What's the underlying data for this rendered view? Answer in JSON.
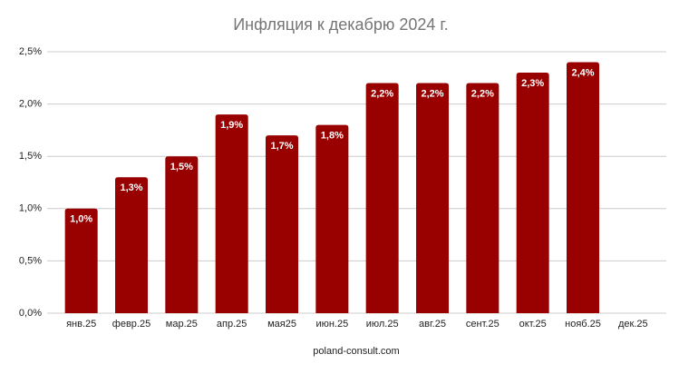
{
  "chart_data": {
    "type": "bar",
    "title": "Инфляция к декабрю 2024 г.",
    "x_label": "poland-consult.com",
    "categories": [
      "янв.25",
      "февр.25",
      "мар.25",
      "апр.25",
      "мая25",
      "июн.25",
      "июл.25",
      "авг.25",
      "сент.25",
      "окт.25",
      "нояб.25",
      "дек.25"
    ],
    "values": [
      1.0,
      1.3,
      1.5,
      1.9,
      1.7,
      1.8,
      2.2,
      2.2,
      2.2,
      2.3,
      2.4,
      null
    ],
    "value_labels": [
      "1,0%",
      "1,3%",
      "1,5%",
      "1,9%",
      "1,7%",
      "1,8%",
      "2,2%",
      "2,2%",
      "2,2%",
      "2,3%",
      "2,4%",
      null
    ],
    "color": "#990000",
    "ylim": [
      0,
      2.5
    ],
    "yticks": [
      {
        "value": 0,
        "label": "0,0%"
      },
      {
        "value": 0.5,
        "label": "0,5%"
      },
      {
        "value": 1.0,
        "label": "1,0%"
      },
      {
        "value": 1.5,
        "label": "1,5%"
      },
      {
        "value": 2.0,
        "label": "2,0%"
      },
      {
        "value": 2.5,
        "label": "2,5%"
      }
    ],
    "grid": true
  }
}
